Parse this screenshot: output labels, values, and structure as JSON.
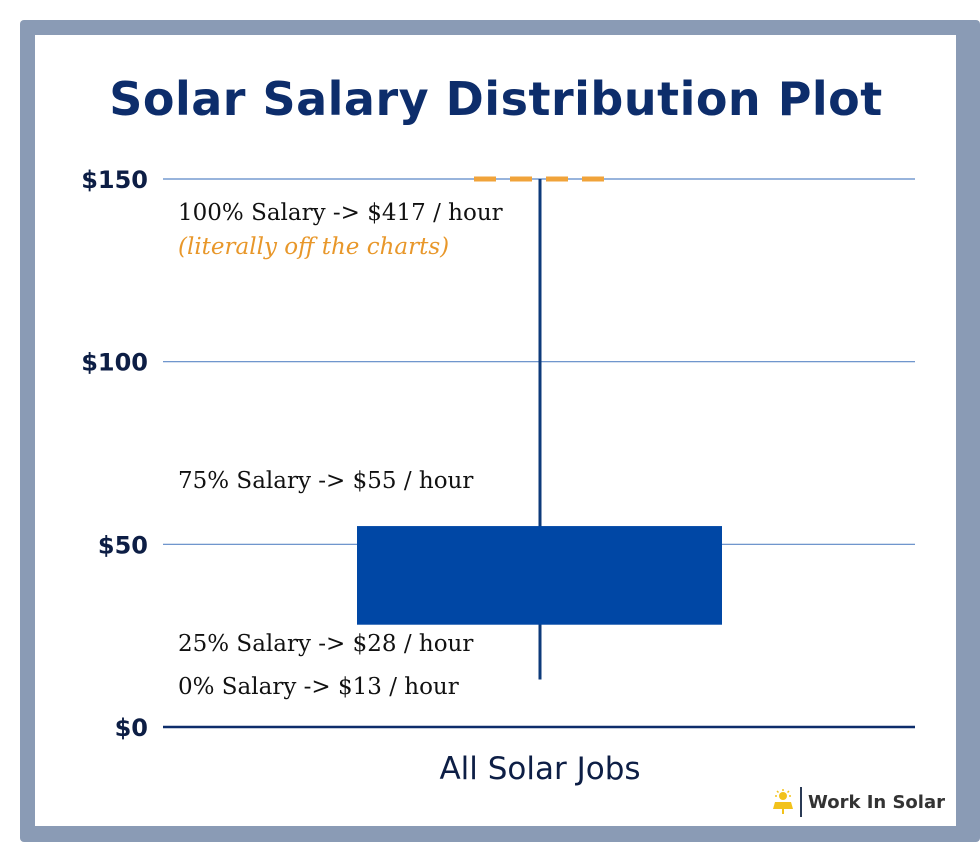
{
  "chart_data": {
    "type": "box",
    "title": "Solar Salary Distribution Plot",
    "categories": [
      "All Solar Jobs"
    ],
    "ylim": [
      0,
      150
    ],
    "y_ticks": [
      0,
      50,
      100,
      150
    ],
    "y_tick_labels": [
      "$0",
      "$50",
      "$100",
      "$150"
    ],
    "grid": true,
    "series": [
      {
        "min": 13,
        "q1": 28,
        "q3": 55,
        "max": 417,
        "max_clipped_at": 150
      }
    ],
    "annotations": [
      "100% Salary -> $417 / hour",
      "(literally off the charts)",
      "75% Salary -> $55 / hour",
      "25% Salary -> $28 / hour",
      "0% Salary ->  $13 / hour"
    ],
    "colors": {
      "box": "#0047a5",
      "whisker": "#0d3a7a",
      "grid": "#5b87c6",
      "axis": "#0d2d6b",
      "clip_marker": "#f0a33a",
      "note": "#e8972a",
      "frame": "#8a9bb5"
    }
  },
  "brand": {
    "icon": "solar-panel-icon",
    "label": "Work In Solar"
  }
}
